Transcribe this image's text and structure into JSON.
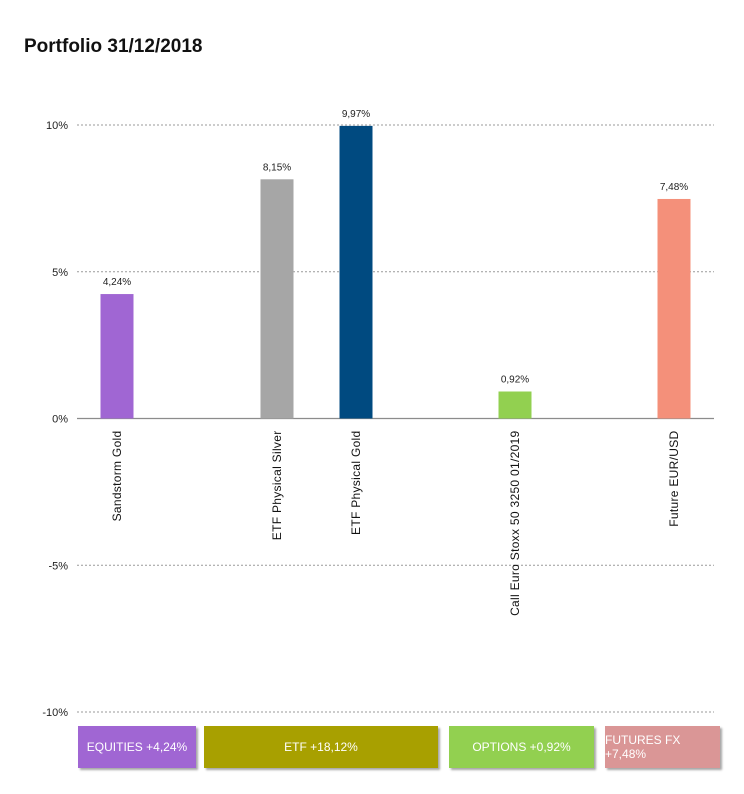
{
  "title": "Portfolio 31/12/2018",
  "chart_data": {
    "type": "bar",
    "title": "Portfolio 31/12/2018",
    "xlabel": "",
    "ylabel": "",
    "ylim": [
      -10,
      10
    ],
    "grid": true,
    "y_ticks": [
      {
        "value": 10,
        "label": "10%"
      },
      {
        "value": 5,
        "label": "5%"
      },
      {
        "value": 0,
        "label": "0%"
      },
      {
        "value": -5,
        "label": "-5%"
      },
      {
        "value": -10,
        "label": "-10%"
      }
    ],
    "categories": [
      "Sandstorm Gold",
      "ETF Physical Silver",
      "ETF Physical Gold",
      "Call Euro Stoxx 50 3250 01/2019",
      "Future EUR/USD"
    ],
    "values": [
      4.24,
      8.15,
      9.97,
      0.92,
      7.48
    ],
    "value_labels": [
      "4,24%",
      "8,15%",
      "9,97%",
      "0,92%",
      "7,48%"
    ],
    "colors": [
      "#a066d3",
      "#a6a6a6",
      "#004a80",
      "#92d050",
      "#f4907a"
    ]
  },
  "groups": [
    {
      "label": "EQUITIES +4,24%",
      "color": "#a066d3"
    },
    {
      "label": "ETF +18,12%",
      "color": "#a8a000"
    },
    {
      "label": "OPTIONS +0,92%",
      "color": "#92d050"
    },
    {
      "label": "FUTURES FX +7,48%",
      "color": "#da9696"
    }
  ]
}
